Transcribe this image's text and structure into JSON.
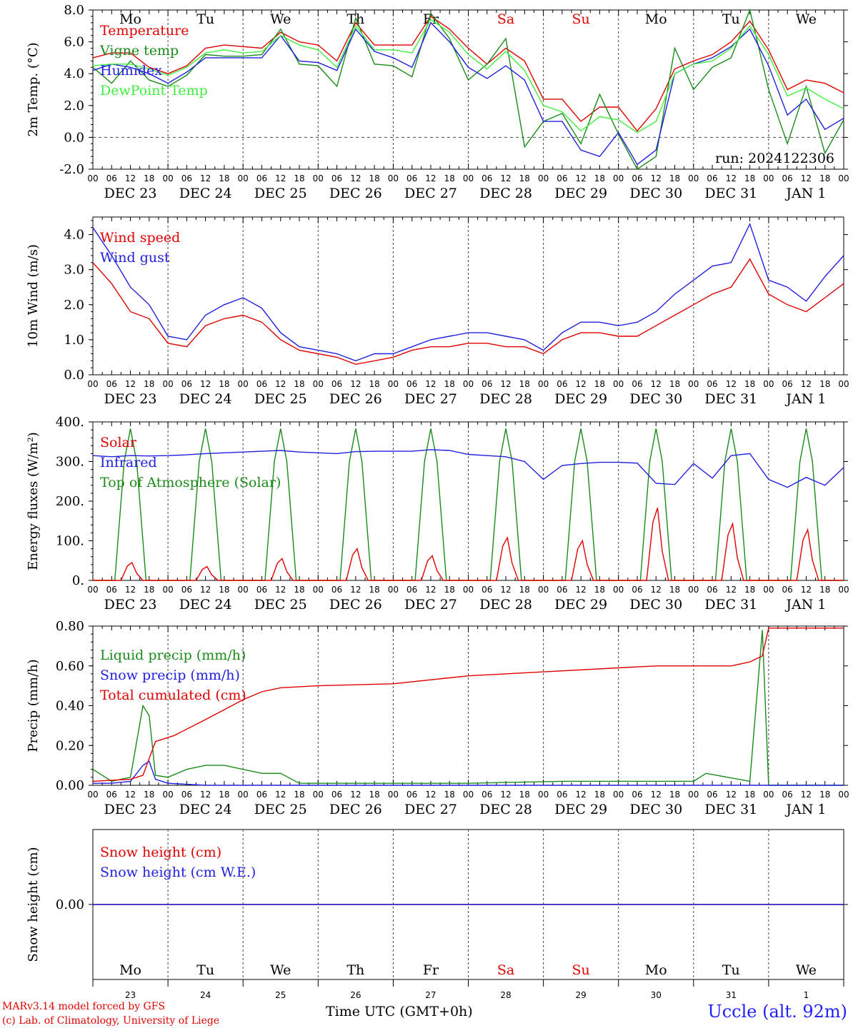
{
  "days": [
    "DEC 23",
    "DEC 24",
    "DEC 25",
    "DEC 26",
    "DEC 27",
    "DEC 28",
    "DEC 29",
    "DEC 30",
    "DEC 31",
    "JAN  1"
  ],
  "weekdays": [
    "Mo",
    "Tu",
    "We",
    "Th",
    "Fr",
    "Sa",
    "Su",
    "Mo",
    "Tu",
    "We"
  ],
  "weekday_colors": [
    "#000",
    "#000",
    "#000",
    "#000",
    "#000",
    "#e00000",
    "#e00000",
    "#000",
    "#000",
    "#000"
  ],
  "day_numbers": [
    "23",
    "24",
    "25",
    "26",
    "27",
    "28",
    "29",
    "30",
    "31",
    "1"
  ],
  "hour_ticks": [
    "00",
    "06",
    "12",
    "18"
  ],
  "run_label": "run: 2024122306",
  "footer": {
    "model": "MARv3.14 model forced by GFS",
    "lab": "(c) Lab. of Climatology, University of Liege",
    "xlabel": "Time UTC (GMT+0h)",
    "station": "Uccle (alt. 92m)"
  },
  "chart_data": [
    {
      "type": "line",
      "ylabel": "2m Temp. (°C)",
      "ylim": [
        -2,
        8
      ],
      "yticks": [
        "-2.0",
        "0.0",
        "2.0",
        "4.0",
        "6.0",
        "8.0"
      ],
      "legend_position": "top-left",
      "x_unit": "hours since DEC 23 00 UTC",
      "series": [
        {
          "name": "Temperature",
          "color": "#e00000",
          "x": [
            0,
            6,
            12,
            18,
            24,
            30,
            36,
            42,
            48,
            54,
            60,
            66,
            72,
            78,
            84,
            90,
            96,
            102,
            108,
            114,
            120,
            126,
            132,
            138,
            144,
            150,
            156,
            162,
            168,
            174,
            180,
            186,
            192,
            198,
            204,
            210,
            216,
            222,
            228,
            234,
            240
          ],
          "values": [
            5.0,
            5.3,
            5.3,
            4.4,
            4.0,
            4.5,
            5.6,
            5.8,
            5.7,
            5.6,
            6.6,
            6.0,
            5.8,
            4.8,
            7.2,
            5.8,
            5.8,
            5.8,
            7.6,
            6.8,
            5.6,
            4.6,
            5.6,
            4.8,
            2.4,
            2.4,
            1.0,
            1.9,
            1.9,
            0.4,
            1.8,
            4.3,
            4.8,
            5.2,
            6.0,
            7.3,
            5.5,
            3.0,
            3.6,
            3.4,
            2.8
          ]
        },
        {
          "name": "Vigne temp",
          "color": "#1a8a1a",
          "x": [
            0,
            6,
            12,
            18,
            24,
            30,
            36,
            42,
            48,
            54,
            60,
            66,
            72,
            78,
            84,
            90,
            96,
            102,
            108,
            114,
            120,
            126,
            132,
            138,
            144,
            150,
            156,
            162,
            168,
            174,
            180,
            186,
            192,
            198,
            204,
            210,
            216,
            222,
            228,
            234,
            240
          ],
          "values": [
            4.4,
            3.4,
            4.8,
            3.6,
            3.2,
            3.9,
            5.2,
            5.1,
            5.1,
            5.2,
            6.8,
            4.6,
            4.5,
            3.2,
            7.5,
            4.6,
            4.5,
            3.8,
            7.8,
            6.2,
            3.6,
            4.6,
            6.2,
            -0.6,
            1.0,
            1.5,
            -0.4,
            2.7,
            0.2,
            -2.3,
            -1.2,
            5.6,
            3.0,
            4.4,
            5.0,
            8.2,
            3.0,
            -0.4,
            3.2,
            -1.0,
            1.1
          ]
        },
        {
          "name": "Humidex",
          "color": "#2020e0",
          "x": [
            0,
            6,
            12,
            18,
            24,
            30,
            36,
            42,
            48,
            54,
            60,
            66,
            72,
            78,
            84,
            90,
            96,
            102,
            108,
            114,
            120,
            126,
            132,
            138,
            144,
            150,
            156,
            162,
            168,
            174,
            180,
            186,
            192,
            198,
            204,
            210,
            216,
            222,
            228,
            234,
            240
          ],
          "values": [
            4.2,
            4.6,
            4.4,
            4.0,
            3.4,
            4.1,
            5.0,
            5.0,
            5.0,
            5.0,
            6.4,
            4.8,
            4.7,
            4.2,
            6.8,
            5.4,
            5.0,
            4.4,
            7.2,
            6.0,
            4.4,
            3.7,
            4.5,
            3.6,
            1.0,
            1.0,
            -0.8,
            -1.2,
            0.3,
            -1.7,
            -0.8,
            4.0,
            4.6,
            5.0,
            5.7,
            6.8,
            4.5,
            1.4,
            2.4,
            0.5,
            1.2
          ]
        },
        {
          "name": "DewPoint Temp",
          "color": "#40ee40",
          "x": [
            0,
            6,
            12,
            18,
            24,
            30,
            36,
            42,
            48,
            54,
            60,
            66,
            72,
            78,
            84,
            90,
            96,
            102,
            108,
            114,
            120,
            126,
            132,
            138,
            144,
            150,
            156,
            162,
            168,
            174,
            180,
            186,
            192,
            198,
            204,
            210,
            216,
            222,
            228,
            234,
            240
          ],
          "values": [
            4.5,
            4.6,
            4.6,
            4.3,
            3.9,
            4.4,
            5.3,
            5.5,
            5.3,
            5.4,
            6.4,
            5.8,
            5.5,
            4.4,
            7.0,
            5.5,
            5.5,
            5.3,
            7.4,
            6.6,
            5.2,
            4.3,
            5.4,
            4.2,
            2.0,
            1.6,
            0.4,
            1.3,
            1.1,
            0.3,
            1.0,
            4.0,
            4.6,
            4.8,
            5.6,
            7.0,
            5.2,
            2.6,
            3.1,
            2.4,
            1.8
          ]
        }
      ]
    },
    {
      "type": "line",
      "ylabel": "10m Wind (m/s)",
      "ylim": [
        0,
        4.5
      ],
      "yticks": [
        "0.0",
        "1.0",
        "2.0",
        "3.0",
        "4.0"
      ],
      "legend_position": "top-left",
      "series": [
        {
          "name": "Wind speed",
          "color": "#e00000",
          "x": [
            0,
            6,
            12,
            18,
            24,
            30,
            36,
            42,
            48,
            54,
            60,
            66,
            72,
            78,
            84,
            90,
            96,
            102,
            108,
            114,
            120,
            126,
            132,
            138,
            144,
            150,
            156,
            162,
            168,
            174,
            180,
            186,
            192,
            198,
            204,
            210,
            216,
            222,
            228,
            234,
            240
          ],
          "values": [
            3.2,
            2.6,
            1.8,
            1.6,
            0.9,
            0.8,
            1.4,
            1.6,
            1.7,
            1.5,
            1.0,
            0.7,
            0.6,
            0.5,
            0.3,
            0.4,
            0.5,
            0.7,
            0.8,
            0.8,
            0.9,
            0.9,
            0.8,
            0.8,
            0.6,
            1.0,
            1.2,
            1.2,
            1.1,
            1.1,
            1.4,
            1.7,
            2.0,
            2.3,
            2.5,
            3.3,
            2.3,
            2.0,
            1.8,
            2.2,
            2.6
          ]
        },
        {
          "name": "Wind gust",
          "color": "#2020e0",
          "x": [
            0,
            6,
            12,
            18,
            24,
            30,
            36,
            42,
            48,
            54,
            60,
            66,
            72,
            78,
            84,
            90,
            96,
            102,
            108,
            114,
            120,
            126,
            132,
            138,
            144,
            150,
            156,
            162,
            168,
            174,
            180,
            186,
            192,
            198,
            204,
            210,
            216,
            222,
            228,
            234,
            240
          ],
          "values": [
            4.2,
            3.4,
            2.5,
            2.0,
            1.1,
            1.0,
            1.7,
            2.0,
            2.2,
            1.9,
            1.2,
            0.8,
            0.7,
            0.6,
            0.4,
            0.6,
            0.6,
            0.8,
            1.0,
            1.1,
            1.2,
            1.2,
            1.1,
            1.0,
            0.7,
            1.2,
            1.5,
            1.5,
            1.4,
            1.5,
            1.8,
            2.3,
            2.7,
            3.1,
            3.2,
            4.3,
            2.7,
            2.5,
            2.1,
            2.8,
            3.4
          ]
        }
      ]
    },
    {
      "type": "line",
      "ylabel": "Energy fluxes (W/m²)",
      "ylim": [
        0,
        400
      ],
      "yticks": [
        "0.",
        "100.",
        "200.",
        "300.",
        "400."
      ],
      "legend_position": "top-left",
      "solar_peaks": [
        45,
        35,
        55,
        80,
        62,
        108,
        100,
        183,
        143,
        128
      ],
      "toa_peaks": [
        383,
        383,
        383,
        383,
        383,
        383,
        383,
        383,
        383,
        383
      ],
      "series": [
        {
          "name": "Solar",
          "color": "#e00000"
        },
        {
          "name": "Infrared",
          "color": "#2020e0",
          "x": [
            0,
            6,
            12,
            18,
            24,
            30,
            36,
            42,
            48,
            54,
            60,
            66,
            72,
            78,
            84,
            90,
            96,
            102,
            108,
            114,
            120,
            126,
            132,
            138,
            144,
            150,
            156,
            162,
            168,
            174,
            180,
            186,
            192,
            198,
            204,
            210,
            216,
            222,
            228,
            234,
            240
          ],
          "values": [
            315,
            312,
            315,
            314,
            315,
            317,
            320,
            322,
            324,
            326,
            328,
            324,
            322,
            320,
            325,
            326,
            326,
            326,
            330,
            328,
            318,
            315,
            312,
            300,
            255,
            290,
            295,
            298,
            298,
            296,
            245,
            242,
            295,
            258,
            315,
            320,
            255,
            235,
            260,
            240,
            285
          ]
        },
        {
          "name": "Top of Atmosphere (Solar)",
          "color": "#1a8a1a"
        }
      ]
    },
    {
      "type": "line",
      "ylabel": "Precip (mm/h)",
      "ylim": [
        0,
        0.8
      ],
      "yticks": [
        "0.00",
        "0.20",
        "0.40",
        "0.60",
        "0.80"
      ],
      "legend_position": "top-left",
      "series": [
        {
          "name": "Liquid precip (mm/h)",
          "color": "#1a8a1a",
          "x": [
            0,
            6,
            12,
            16,
            18,
            20,
            24,
            30,
            36,
            42,
            48,
            54,
            60,
            66,
            72,
            120,
            150,
            168,
            192,
            196,
            210,
            214,
            216,
            240
          ],
          "values": [
            0.08,
            0.02,
            0.04,
            0.4,
            0.35,
            0.05,
            0.04,
            0.08,
            0.1,
            0.1,
            0.08,
            0.06,
            0.06,
            0.01,
            0.01,
            0.01,
            0.02,
            0.02,
            0.02,
            0.06,
            0.02,
            0.78,
            0.0,
            0.0
          ]
        },
        {
          "name": "Snow precip (mm/h)",
          "color": "#2020e0",
          "x": [
            0,
            6,
            12,
            16,
            18,
            20,
            24,
            36,
            240
          ],
          "values": [
            0.01,
            0.01,
            0.02,
            0.1,
            0.12,
            0.03,
            0.01,
            0.0,
            0.0
          ]
        },
        {
          "name": "Total cumulated (cm)",
          "color": "#e00000",
          "x": [
            0,
            12,
            16,
            20,
            26,
            36,
            42,
            48,
            54,
            60,
            72,
            96,
            120,
            132,
            144,
            168,
            180,
            192,
            204,
            210,
            214,
            216,
            240
          ],
          "values": [
            0.02,
            0.03,
            0.05,
            0.22,
            0.25,
            0.33,
            0.38,
            0.43,
            0.47,
            0.49,
            0.5,
            0.51,
            0.55,
            0.56,
            0.57,
            0.59,
            0.6,
            0.6,
            0.6,
            0.62,
            0.65,
            0.79,
            0.79
          ]
        }
      ]
    },
    {
      "type": "line",
      "ylabel": "Snow height (cm)",
      "ylim": [
        -1,
        1
      ],
      "yticks": [
        "0.00"
      ],
      "legend_position": "top-left",
      "series": [
        {
          "name": "Snow height (cm)",
          "color": "#e00000",
          "x": [
            0,
            240
          ],
          "values": [
            0,
            0
          ]
        },
        {
          "name": "Snow height (cm W.E.)",
          "color": "#2020e0",
          "x": [
            0,
            240
          ],
          "values": [
            0,
            0
          ]
        }
      ]
    }
  ]
}
